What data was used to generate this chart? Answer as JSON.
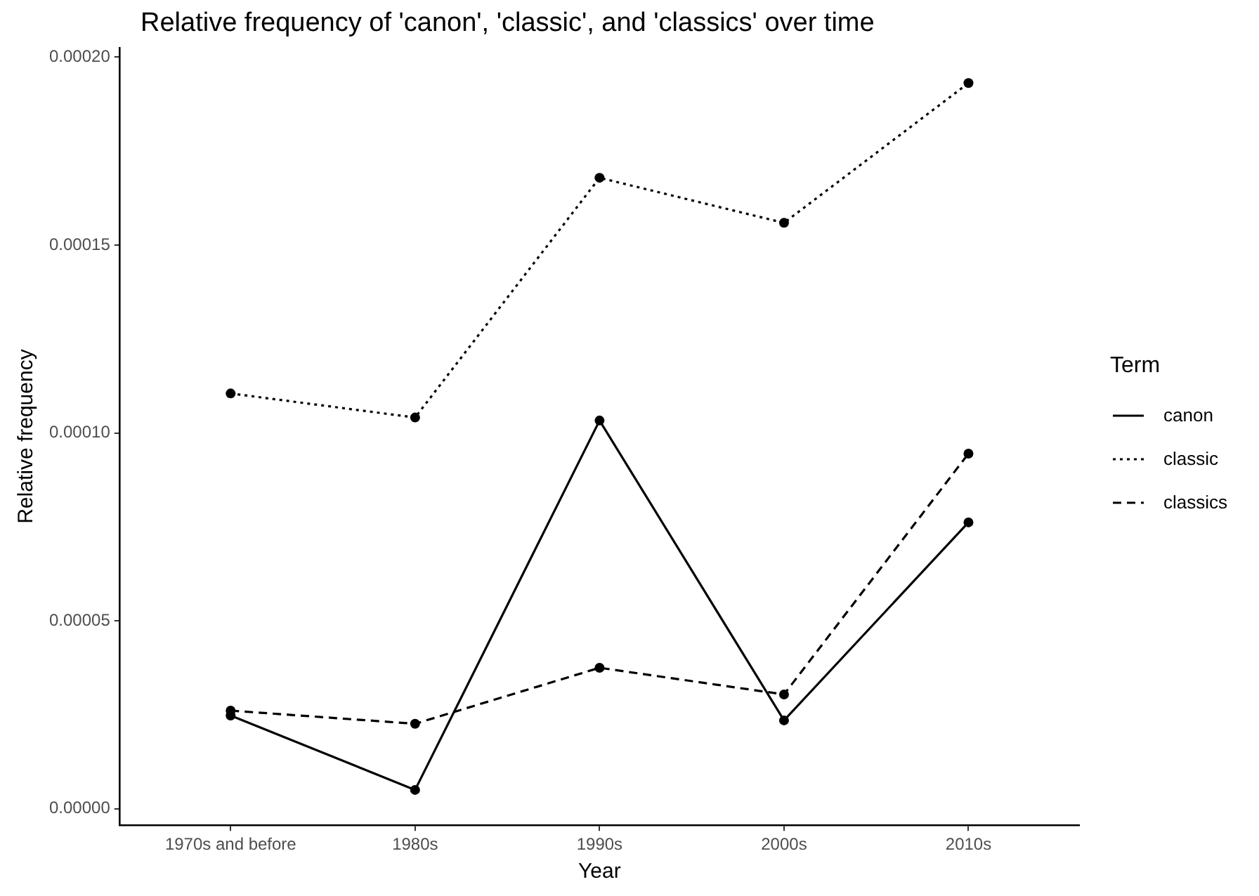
{
  "chart_data": {
    "type": "line",
    "title": "Relative frequency of 'canon', 'classic', and 'classics' over time",
    "xlabel": "Year",
    "ylabel": "Relative frequency",
    "legend_title": "Term",
    "legend": "right",
    "grid": false,
    "marker": "circle",
    "categories": [
      "1970s and before",
      "1980s",
      "1990s",
      "2000s",
      "2010s"
    ],
    "ylim": [
      -4.4e-06,
      0.0002025
    ],
    "yticks": [
      {
        "value": 0,
        "label": "0.00000"
      },
      {
        "value": 5e-05,
        "label": "0.00005"
      },
      {
        "value": 0.0001,
        "label": "0.00010"
      },
      {
        "value": 0.00015,
        "label": "0.00015"
      },
      {
        "value": 0.0002,
        "label": "0.00020"
      }
    ],
    "series": [
      {
        "name": "canon",
        "color": "#000000",
        "line_style": "solid",
        "values": [
          2.48e-05,
          5e-06,
          0.0001033,
          2.35e-05,
          7.62e-05
        ]
      },
      {
        "name": "classic",
        "color": "#000000",
        "line_style": "dotted",
        "values": [
          0.0001105,
          0.0001041,
          0.0001679,
          0.0001559,
          0.0001931
        ]
      },
      {
        "name": "classics",
        "color": "#000000",
        "line_style": "dashed",
        "values": [
          2.61e-05,
          2.26e-05,
          3.75e-05,
          3.04e-05,
          9.45e-05
        ]
      }
    ]
  }
}
